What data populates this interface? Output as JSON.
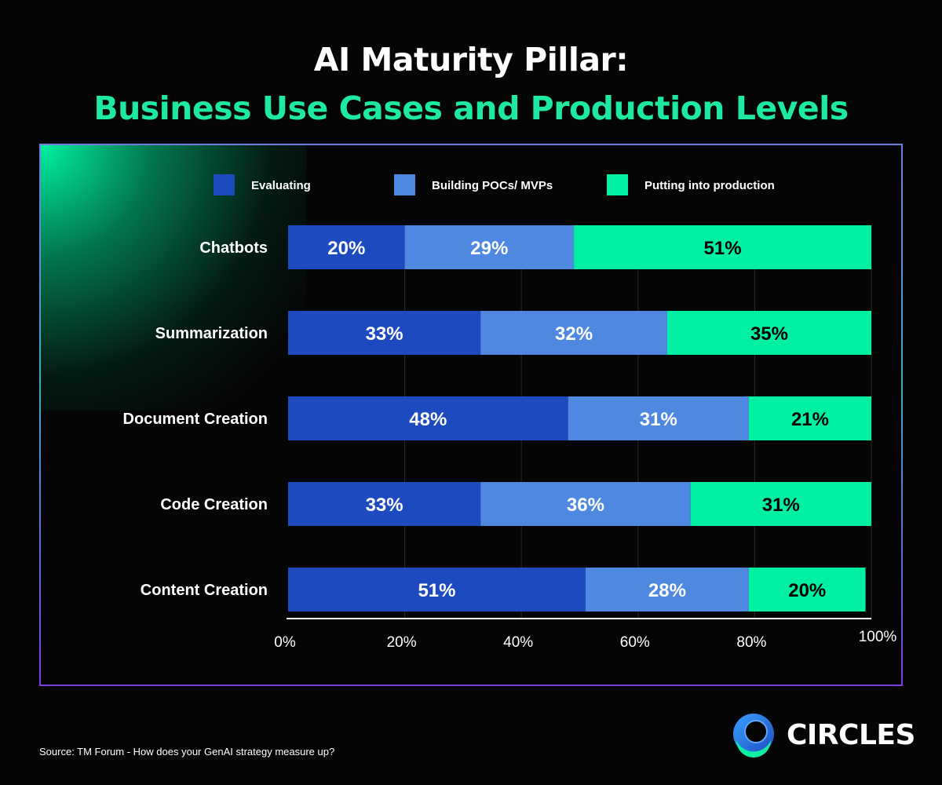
{
  "header": {
    "title_line1": "AI Maturity Pillar:",
    "title_line2": "Business Use Cases and Production Levels"
  },
  "chart_data": {
    "type": "bar",
    "orientation": "horizontal",
    "stacked": true,
    "categories": [
      "Chatbots",
      "Summarization",
      "Document Creation",
      "Code Creation",
      "Content Creation"
    ],
    "series": [
      {
        "name": "Evaluating",
        "color": "#1d4bbf",
        "values": [
          20,
          33,
          48,
          33,
          51
        ]
      },
      {
        "name": "Building POCs/ MVPs",
        "color": "#4f88e0",
        "values": [
          29,
          32,
          31,
          36,
          28
        ]
      },
      {
        "name": "Putting into production",
        "color": "#00f0a3",
        "values": [
          51,
          35,
          21,
          31,
          20
        ]
      }
    ],
    "data_labels": [
      [
        "20%",
        "33%",
        "48%",
        "33%",
        "51%"
      ],
      [
        "29%",
        "32%",
        "31%",
        "36%",
        "28%"
      ],
      [
        "51%",
        "35%",
        "21%",
        "31%",
        "20%"
      ]
    ],
    "label_colors": [
      "#ffffff",
      "#ffffff",
      "#000000"
    ],
    "x_ticks": [
      "0%",
      "20%",
      "40%",
      "60%",
      "80%",
      "100%"
    ],
    "xlim": [
      0,
      100
    ],
    "grid": true,
    "legend_position": "top"
  },
  "footer": {
    "source": "Source: TM Forum - How does your GenAI strategy measure up?",
    "brand": "CIRCLES"
  }
}
